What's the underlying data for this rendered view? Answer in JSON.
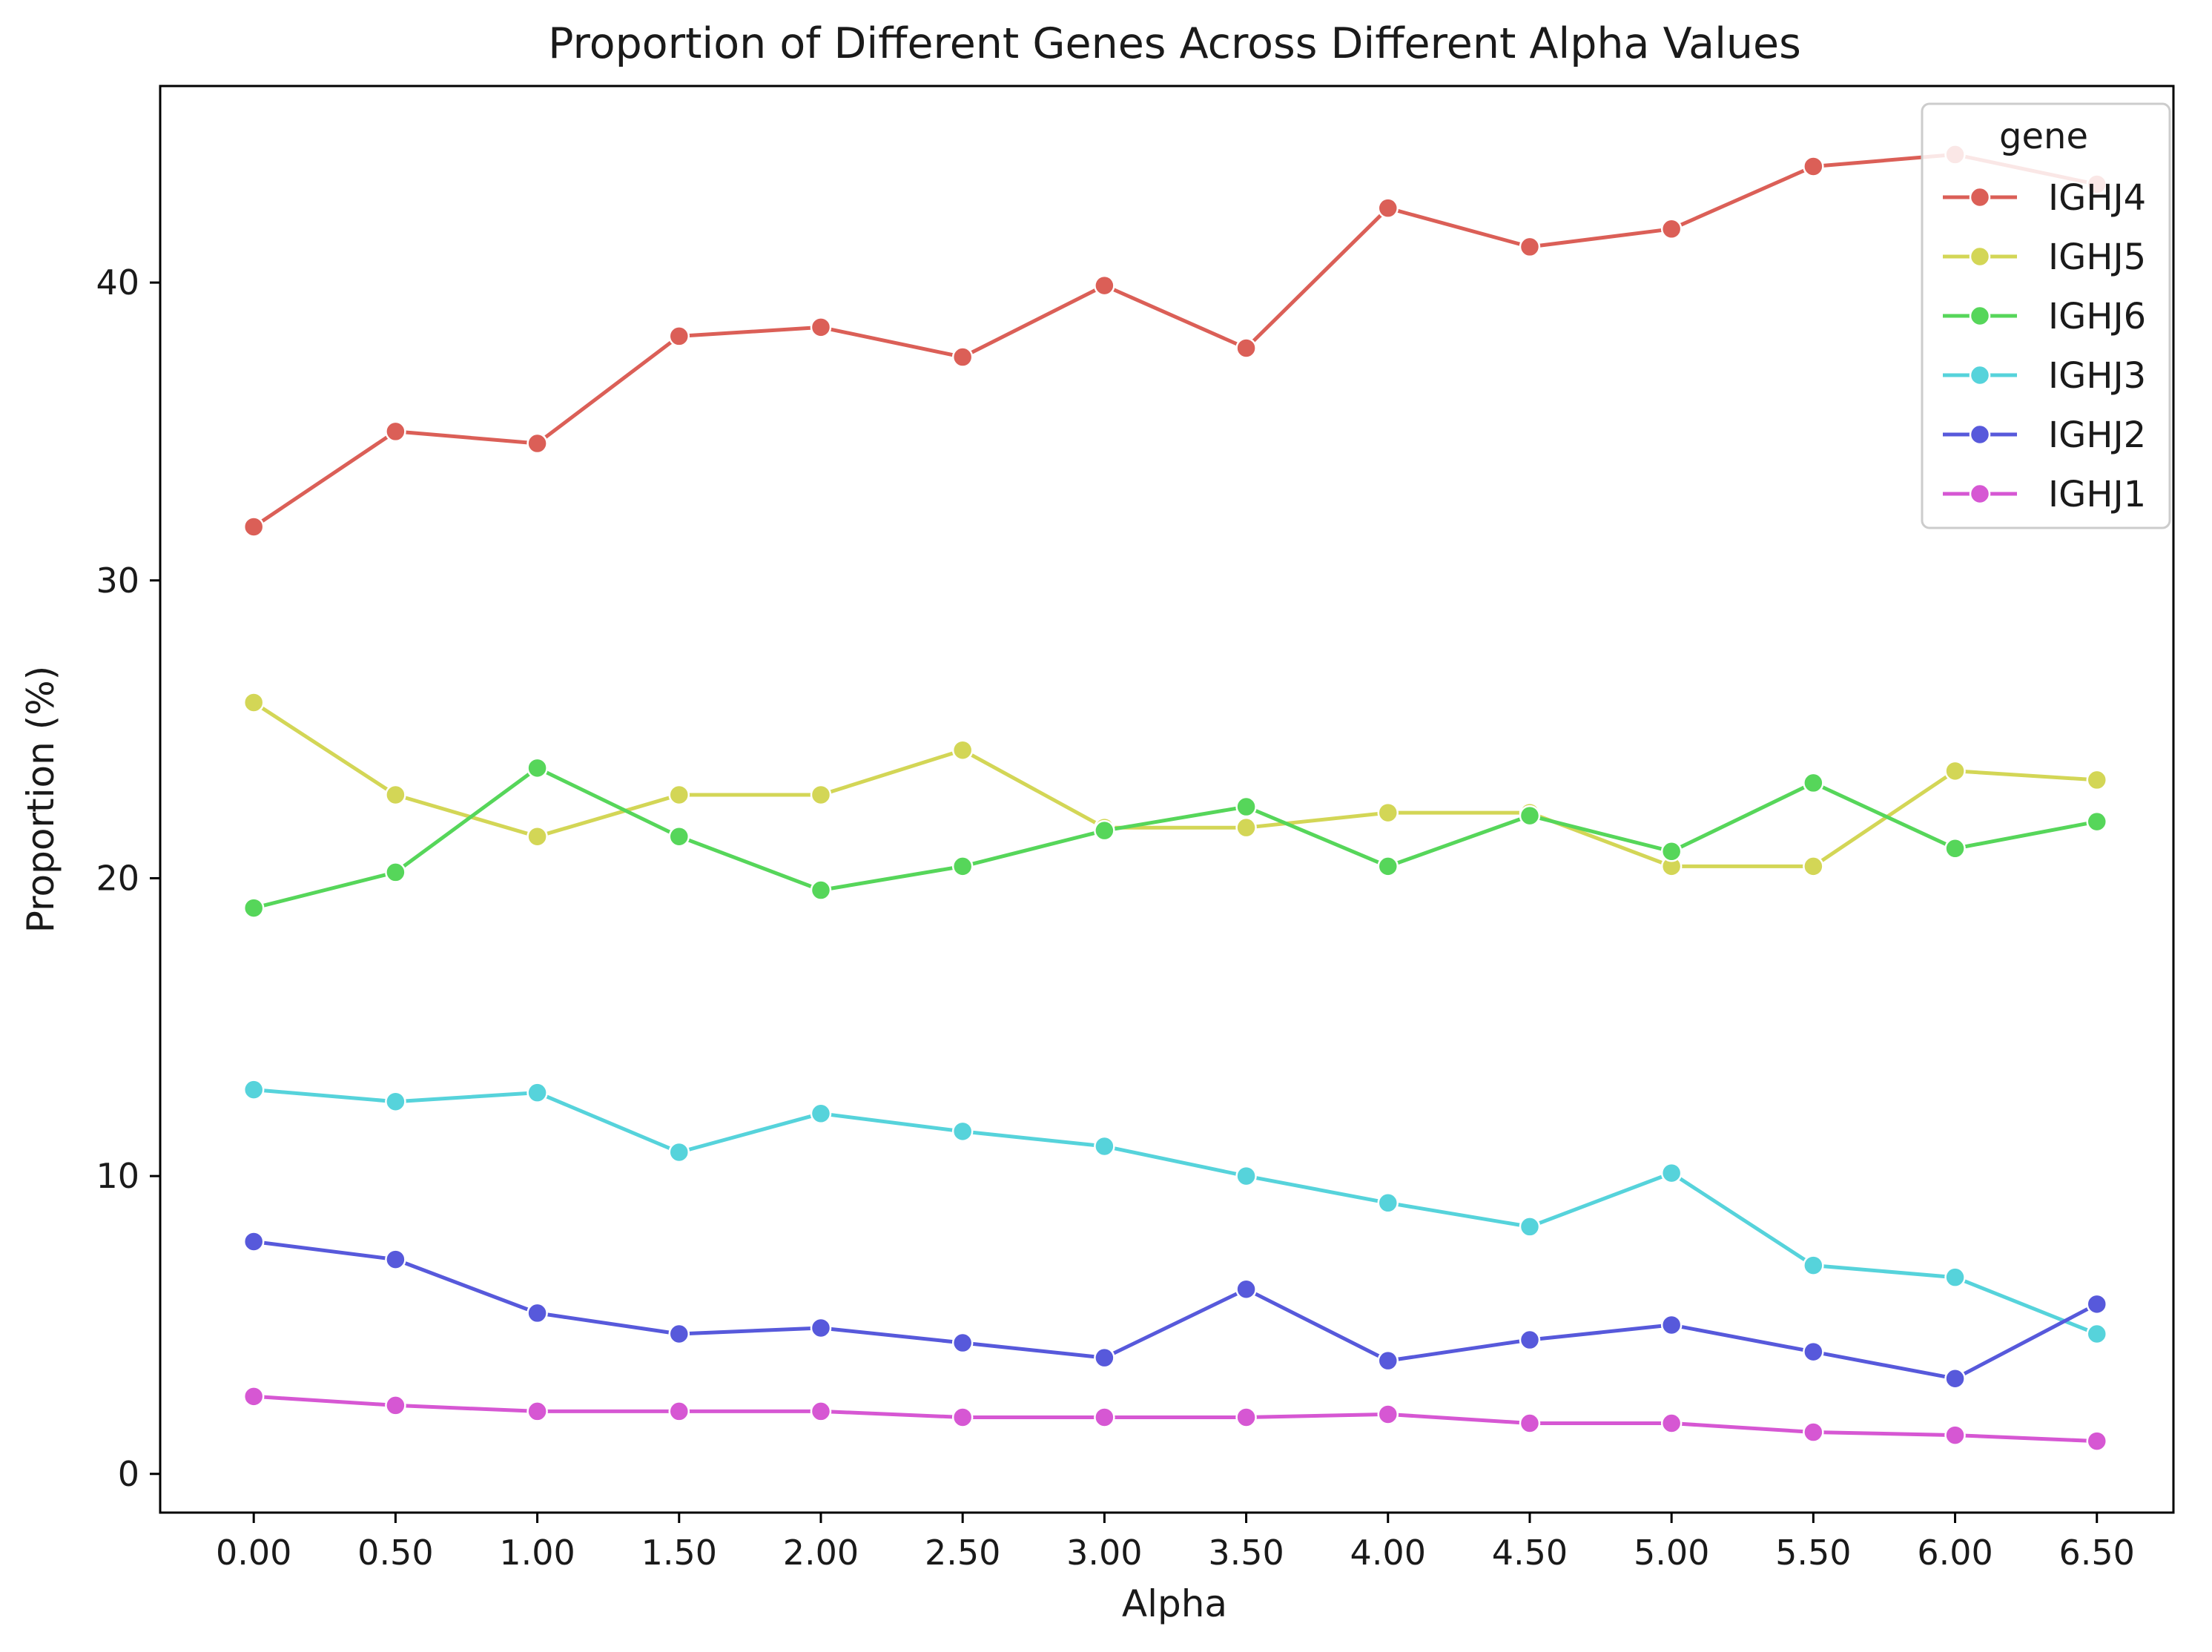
{
  "chart_data": {
    "type": "line",
    "title": "Proportion of Different Genes Across Different Alpha Values",
    "xlabel": "Alpha",
    "ylabel": "Proportion (%)",
    "x": [
      0.0,
      0.5,
      1.0,
      1.5,
      2.0,
      2.5,
      3.0,
      3.5,
      4.0,
      4.5,
      5.0,
      5.5,
      6.0,
      6.5
    ],
    "x_tick_labels": [
      "0.00",
      "0.50",
      "1.00",
      "1.50",
      "2.00",
      "2.50",
      "3.00",
      "3.50",
      "4.00",
      "4.50",
      "5.00",
      "5.50",
      "6.00",
      "6.50"
    ],
    "y_ticks": [
      0,
      10,
      20,
      30,
      40
    ],
    "y_tick_labels": [
      "0",
      "10",
      "20",
      "30",
      "40"
    ],
    "xlim": [
      -0.33,
      6.77
    ],
    "ylim": [
      -1.3,
      46.6
    ],
    "grid": false,
    "legend": {
      "title": "gene",
      "position": "top-right"
    },
    "series": [
      {
        "name": "IGHJ4",
        "color": "#db5f57",
        "values": [
          31.8,
          35.0,
          34.6,
          38.2,
          38.5,
          37.5,
          39.9,
          37.8,
          42.5,
          41.2,
          41.8,
          43.9,
          44.3,
          43.3
        ]
      },
      {
        "name": "IGHJ5",
        "color": "#d3d656",
        "values": [
          25.9,
          22.8,
          21.4,
          22.8,
          22.8,
          24.3,
          21.7,
          21.7,
          22.2,
          22.2,
          20.4,
          20.4,
          23.6,
          23.3
        ]
      },
      {
        "name": "IGHJ6",
        "color": "#56d65a",
        "values": [
          19.0,
          20.2,
          23.7,
          21.4,
          19.6,
          20.4,
          21.6,
          22.4,
          20.4,
          22.1,
          20.9,
          23.2,
          21.0,
          21.9
        ]
      },
      {
        "name": "IGHJ3",
        "color": "#56d3db",
        "values": [
          12.9,
          12.5,
          12.8,
          10.8,
          12.1,
          11.5,
          11.0,
          10.0,
          9.1,
          8.3,
          10.1,
          7.0,
          6.6,
          4.7
        ]
      },
      {
        "name": "IGHJ2",
        "color": "#5759db",
        "values": [
          7.8,
          7.2,
          5.4,
          4.7,
          4.9,
          4.4,
          3.9,
          6.2,
          3.8,
          4.5,
          5.0,
          4.1,
          3.2,
          5.7
        ]
      },
      {
        "name": "IGHJ1",
        "color": "#d657d3",
        "values": [
          2.6,
          2.3,
          2.1,
          2.1,
          2.1,
          1.9,
          1.9,
          1.9,
          2.0,
          1.7,
          1.7,
          1.4,
          1.3,
          1.1
        ]
      }
    ]
  }
}
